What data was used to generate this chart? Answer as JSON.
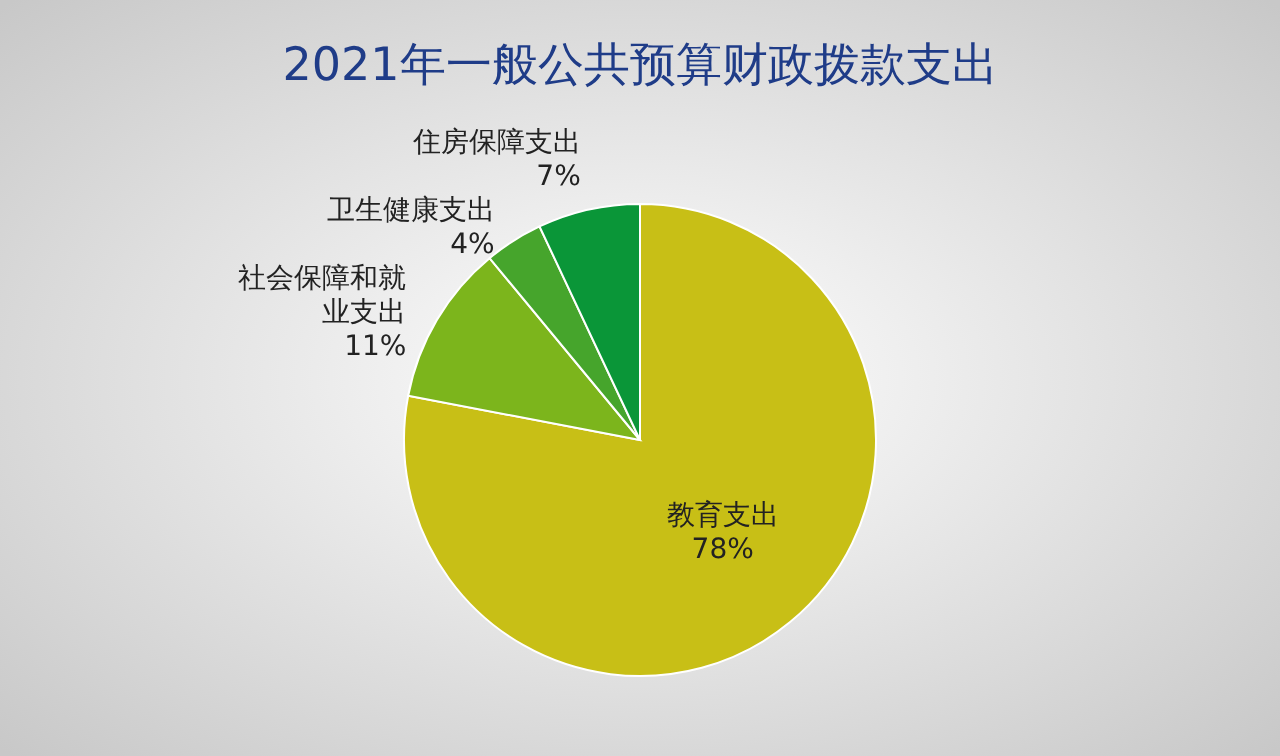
{
  "chart_data": {
    "type": "pie",
    "title": "2021年一般公共预算财政拨款支出",
    "categories": [
      "教育支出",
      "社会保障和就业支出",
      "卫生健康支出",
      "住房保障支出"
    ],
    "values": [
      78,
      11,
      4,
      7
    ],
    "colors": [
      "#c8bf16",
      "#7cb51c",
      "#46a52c",
      "#0a9638"
    ],
    "value_labels": [
      "78%",
      "11%",
      "4%",
      "7%"
    ],
    "legend": false
  }
}
